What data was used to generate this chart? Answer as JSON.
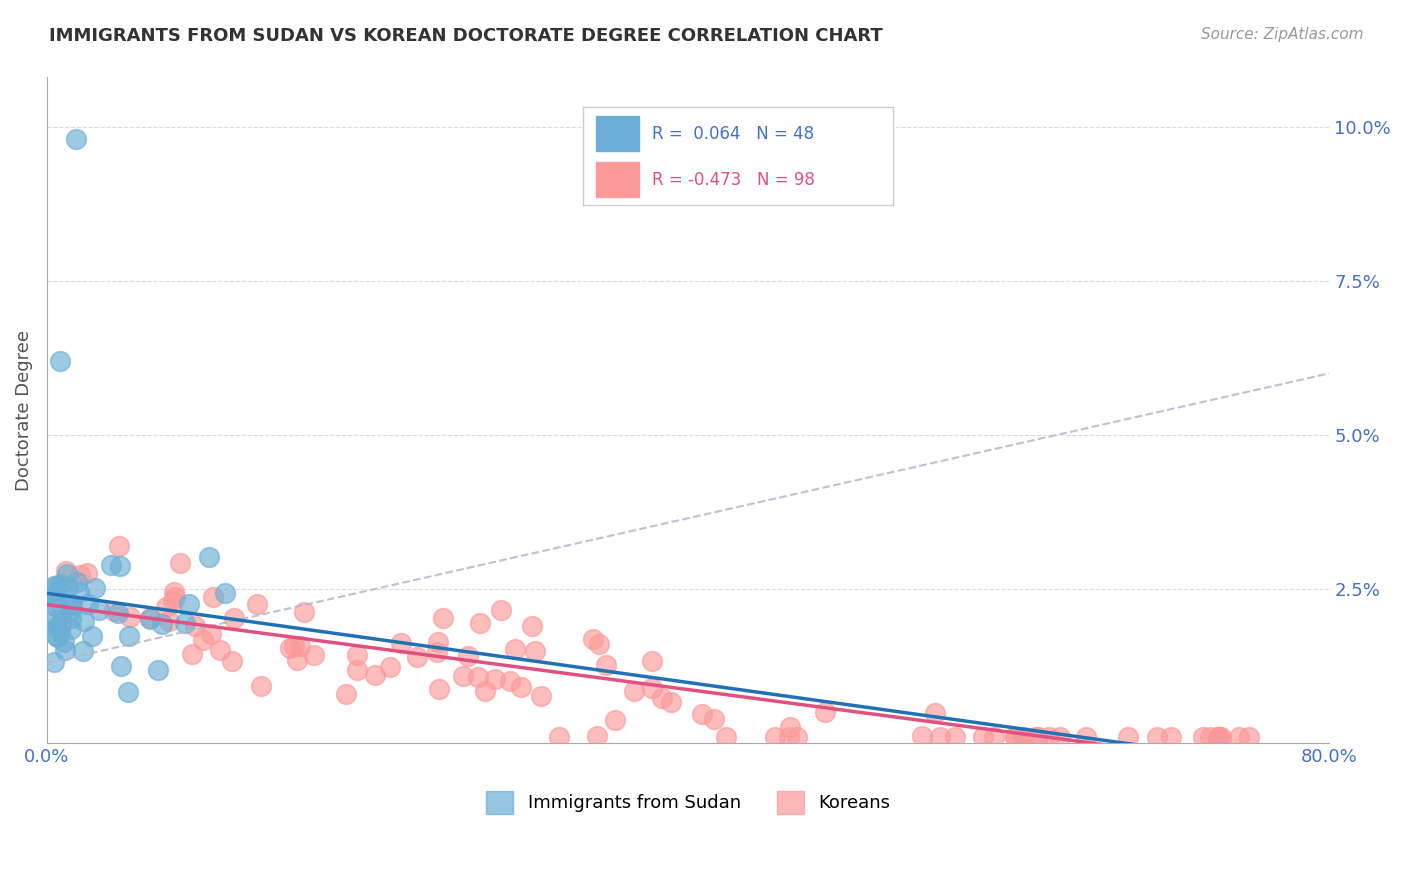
{
  "title": "IMMIGRANTS FROM SUDAN VS KOREAN DOCTORATE DEGREE CORRELATION CHART",
  "source": "Source: ZipAtlas.com",
  "ylabel": "Doctorate Degree",
  "yticks": [
    0.0,
    0.025,
    0.05,
    0.075,
    0.1
  ],
  "ytick_labels": [
    "",
    "2.5%",
    "5.0%",
    "7.5%",
    "10.0%"
  ],
  "xlim": [
    0.0,
    0.8
  ],
  "ylim": [
    0.0,
    0.108
  ],
  "legend_sudan_r": "R =  0.064",
  "legend_sudan_n": "N = 48",
  "legend_korean_r": "R = -0.473",
  "legend_korean_n": "N = 98",
  "sudan_color": "#6baed6",
  "korean_color": "#fb9a99",
  "sudan_line_color": "#2171b5",
  "korean_line_color": "#e05080",
  "trend_line_color": "#b0b8c8",
  "background_color": "#ffffff",
  "tick_color": "#4472c4"
}
